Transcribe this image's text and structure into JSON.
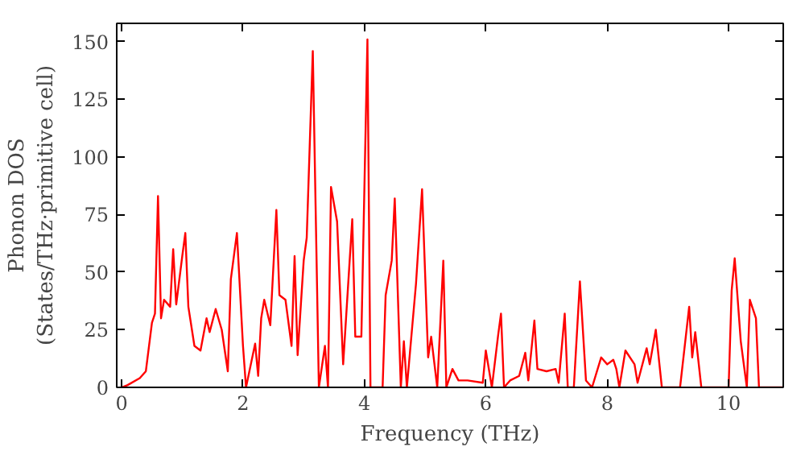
{
  "chart_data": {
    "type": "line",
    "xlabel": "Frequency (THz)",
    "ylabel": "Phonon DOS\n(States/THz·primitive cell)",
    "x": [
      0,
      0.1,
      0.3,
      0.4,
      0.5,
      0.55,
      0.6,
      0.65,
      0.7,
      0.8,
      0.85,
      0.9,
      1.0,
      1.05,
      1.1,
      1.2,
      1.3,
      1.4,
      1.45,
      1.55,
      1.65,
      1.75,
      1.8,
      1.9,
      2.0,
      2.05,
      2.2,
      2.25,
      2.3,
      2.35,
      2.45,
      2.55,
      2.6,
      2.7,
      2.8,
      2.85,
      2.9,
      3.0,
      3.05,
      3.15,
      3.25,
      3.35,
      3.4,
      3.45,
      3.55,
      3.65,
      3.8,
      3.85,
      3.95,
      4.05,
      4.1,
      4.3,
      4.35,
      4.45,
      4.5,
      4.6,
      4.65,
      4.7,
      4.85,
      4.95,
      5.05,
      5.1,
      5.2,
      5.3,
      5.35,
      5.45,
      5.55,
      5.7,
      5.95,
      6.0,
      6.1,
      6.2,
      6.25,
      6.3,
      6.4,
      6.55,
      6.65,
      6.7,
      6.8,
      6.85,
      7.0,
      7.15,
      7.2,
      7.3,
      7.35,
      7.45,
      7.55,
      7.65,
      7.75,
      7.9,
      8.0,
      8.1,
      8.15,
      8.2,
      8.3,
      8.45,
      8.5,
      8.6,
      8.65,
      8.7,
      8.8,
      8.9,
      9.2,
      9.35,
      9.4,
      9.45,
      9.55,
      10.0,
      10.05,
      10.1,
      10.2,
      10.3,
      10.35,
      10.45,
      10.5,
      10.9
    ],
    "series": [
      {
        "color": "#ff0000",
        "values": [
          0,
          1,
          4,
          7,
          28,
          32,
          83,
          30,
          38,
          35,
          60,
          36,
          57,
          67,
          35,
          18,
          16,
          30,
          24,
          34,
          25,
          7,
          47,
          67,
          18,
          0,
          19,
          5,
          30,
          38,
          27,
          77,
          40,
          38,
          18,
          57,
          14,
          55,
          65,
          146,
          0,
          18,
          0,
          87,
          72,
          10,
          73,
          22,
          22,
          151,
          0,
          0,
          40,
          55,
          82,
          0,
          20,
          0,
          45,
          86,
          13,
          22,
          0,
          55,
          0,
          8,
          3,
          3,
          2,
          16,
          0,
          22,
          32,
          0,
          3,
          5,
          15,
          3,
          29,
          8,
          7,
          8,
          2,
          32,
          0,
          0,
          46,
          3,
          0,
          13,
          10,
          12,
          8,
          0,
          16,
          10,
          2,
          12,
          17,
          10,
          25,
          0,
          0,
          35,
          13,
          24,
          0,
          0,
          42,
          56,
          20,
          0,
          38,
          30,
          0,
          0
        ]
      }
    ],
    "xlim": [
      -0.08,
      10.9
    ],
    "ylim": [
      0,
      158
    ],
    "xticks": [
      0,
      2,
      4,
      6,
      8,
      10
    ],
    "yticks": [
      0,
      25,
      50,
      75,
      100,
      125,
      150
    ],
    "grid": false,
    "marker": "none",
    "line_style": "solid"
  }
}
